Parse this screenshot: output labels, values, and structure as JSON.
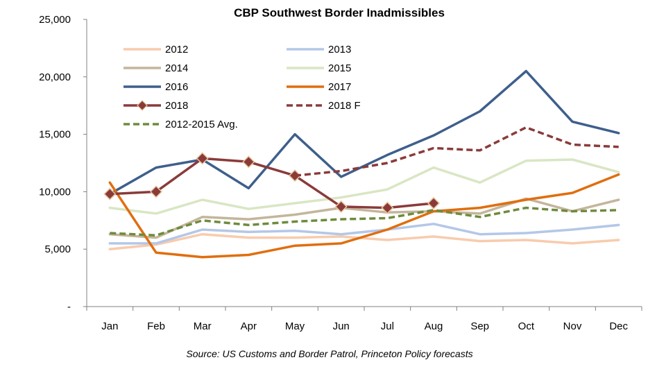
{
  "chart_data": {
    "type": "line",
    "title": "CBP Southwest Border Inadmissibles",
    "source": "Source: US Customs and Border Patrol, Princeton Policy forecasts",
    "categories": [
      "Jan",
      "Feb",
      "Mar",
      "Apr",
      "May",
      "Jun",
      "Jul",
      "Aug",
      "Sep",
      "Oct",
      "Nov",
      "Dec"
    ],
    "ylim": [
      0,
      25000
    ],
    "yticks": [
      0,
      5000,
      10000,
      15000,
      20000,
      25000
    ],
    "ytick_labels": [
      "-",
      "5,000",
      "10,000",
      "15,000",
      "20,000",
      "25,000"
    ],
    "grid": false,
    "legend_position": "top-left",
    "series": [
      {
        "name": "2012",
        "color": "#F8CBAD",
        "style": "solid",
        "marker": "none",
        "values": [
          5000,
          5400,
          6300,
          6000,
          6000,
          6100,
          5800,
          6100,
          5700,
          5800,
          5500,
          5800
        ]
      },
      {
        "name": "2013",
        "color": "#B4C7E7",
        "style": "solid",
        "marker": "none",
        "values": [
          5500,
          5500,
          6700,
          6500,
          6600,
          6300,
          6700,
          7200,
          6300,
          6400,
          6700,
          7100
        ]
      },
      {
        "name": "2014",
        "color": "#C4B59B",
        "style": "solid",
        "marker": "none",
        "values": [
          6300,
          6000,
          7800,
          7600,
          8000,
          8600,
          8200,
          8300,
          8100,
          9400,
          8300,
          9300
        ]
      },
      {
        "name": "2015",
        "color": "#D9E6C3",
        "style": "solid",
        "marker": "none",
        "values": [
          8600,
          8100,
          9300,
          8500,
          9000,
          9500,
          10200,
          12100,
          10800,
          12700,
          12800,
          11700
        ]
      },
      {
        "name": "2016",
        "color": "#3E5F8C",
        "style": "solid",
        "marker": "none",
        "values": [
          9800,
          12100,
          12800,
          10300,
          15000,
          11300,
          13200,
          14900,
          17000,
          20500,
          16100,
          15100
        ]
      },
      {
        "name": "2017",
        "color": "#E06E0F",
        "style": "solid",
        "marker": "none",
        "values": [
          10800,
          4700,
          4300,
          4500,
          5300,
          5500,
          6700,
          8300,
          8600,
          9300,
          9900,
          11500
        ]
      },
      {
        "name": "2018",
        "color": "#8B3A3A",
        "style": "solid",
        "marker": "diamond",
        "values": [
          9800,
          10000,
          12900,
          12600,
          11400,
          8700,
          8600,
          9000,
          null,
          null,
          null,
          null
        ]
      },
      {
        "name": "2018 F",
        "color": "#8B3A3A",
        "style": "dashed",
        "marker": "none",
        "values": [
          null,
          null,
          null,
          null,
          11400,
          11800,
          12500,
          13800,
          13600,
          15600,
          14100,
          13900
        ]
      },
      {
        "name": "2012-2015 Avg.",
        "color": "#6E8B3D",
        "style": "dashed",
        "marker": "none",
        "values": [
          6400,
          6200,
          7500,
          7100,
          7400,
          7600,
          7700,
          8400,
          7800,
          8600,
          8300,
          8400
        ]
      }
    ]
  }
}
